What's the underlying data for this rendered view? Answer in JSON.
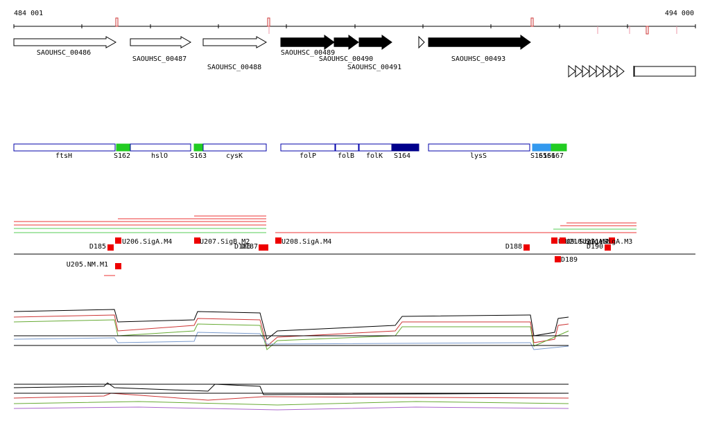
{
  "ruler": {
    "start": "484 001",
    "end": "494 000"
  },
  "genes": [
    {
      "label": "SAOUHSC_00486"
    },
    {
      "label": "SAOUHSC_00487"
    },
    {
      "label": "SAOUHSC_00488"
    },
    {
      "label": "SAOUHSC_00489"
    },
    {
      "label": "SAOUHSC_00490"
    },
    {
      "label": "SAOUHSC_00491"
    },
    {
      "label": "SAOUHSC_00493"
    }
  ],
  "segments": [
    {
      "label": "ftsH"
    },
    {
      "label": "S162"
    },
    {
      "label": "hslO"
    },
    {
      "label": "S163"
    },
    {
      "label": "cysK"
    },
    {
      "label": "folP"
    },
    {
      "label": "folB"
    },
    {
      "label": "folK"
    },
    {
      "label": "S164"
    },
    {
      "label": "lysS"
    },
    {
      "label": "S165"
    },
    {
      "label": "S166"
    },
    {
      "label": "S167"
    }
  ],
  "promoters": [
    {
      "label": "D185"
    },
    {
      "label": "U206.SigA.M4"
    },
    {
      "label": "U207.SigB.M2"
    },
    {
      "label": "D186"
    },
    {
      "label": "D187"
    },
    {
      "label": "U208.SigA.M4"
    },
    {
      "label": "D188"
    },
    {
      "label": "U209.SigA.M4"
    },
    {
      "label": "U210.SigA.M1"
    },
    {
      "label": "D190"
    },
    {
      "label": "U211.SigA.M3"
    },
    {
      "label": "D189"
    },
    {
      "label": "U205.NM.M1"
    }
  ]
}
